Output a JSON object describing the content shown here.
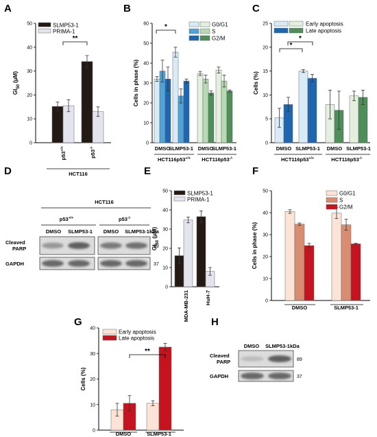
{
  "panels": {
    "A": {
      "letter": "A"
    },
    "B": {
      "letter": "B"
    },
    "C": {
      "letter": "C"
    },
    "D": {
      "letter": "D"
    },
    "E": {
      "letter": "E"
    },
    "F": {
      "letter": "F"
    },
    "G": {
      "letter": "G"
    },
    "H": {
      "letter": "H"
    }
  },
  "chart_data": [
    {
      "id": "A",
      "type": "bar",
      "ylabel": "GI50 (μM)",
      "ylim": [
        0,
        50
      ],
      "yticks": [
        0,
        10,
        20,
        30,
        40,
        50
      ],
      "categories": [
        "p53+/+",
        "p53-/-"
      ],
      "group_label": "HCT116",
      "series": [
        {
          "name": "SLMP53-1",
          "color": "#231a16",
          "values": [
            15.2,
            34.0
          ],
          "errors": [
            1.8,
            2.5
          ]
        },
        {
          "name": "PRIMA-1",
          "color": "#e4e4ee",
          "values": [
            15.5,
            13.0
          ],
          "errors": [
            2.5,
            2.0
          ]
        }
      ],
      "significance": [
        {
          "label": "**"
        }
      ]
    },
    {
      "id": "B",
      "type": "bar",
      "ylabel": "Cells in phase (%)",
      "ylim": [
        0,
        60
      ],
      "yticks": [
        0,
        10,
        20,
        30,
        40,
        50,
        60
      ],
      "categories": [
        "DMSO",
        "SLMP53-1",
        "DMSO",
        "SLMP53-1"
      ],
      "groups": [
        "HCT116p53+/+",
        "HCT116p53-/-"
      ],
      "series": [
        {
          "name": "G0/G1",
          "values": [
            32.0,
            45.5,
            34.8,
            36.5
          ],
          "errors": [
            1.2,
            2.5,
            1.0,
            1.5
          ]
        },
        {
          "name": "S",
          "values": [
            36.0,
            23.5,
            32.0,
            31.0
          ],
          "errors": [
            5.5,
            3.5,
            2.0,
            3.0
          ]
        },
        {
          "name": "G2/M",
          "values": [
            32.0,
            31.0,
            25.0,
            26.0
          ],
          "errors": [
            6.0,
            1.0,
            1.0,
            0.5
          ]
        }
      ],
      "colors": {
        "G0/G1": [
          "#d8ebf6",
          "#e3f0e0"
        ],
        "S": [
          "#4ea3d9",
          "#b8d9b2"
        ],
        "G2/M": [
          "#1f66b0",
          "#4f8e5a"
        ]
      },
      "significance": [
        {
          "label": "*"
        }
      ]
    },
    {
      "id": "C",
      "type": "bar",
      "ylabel": "Cells (%)",
      "ylim": [
        0,
        25
      ],
      "yticks": [
        0,
        5,
        10,
        15,
        20,
        25
      ],
      "categories": [
        "DMSO",
        "SLMP53-1",
        "DMSO",
        "SLMP53-1"
      ],
      "groups": [
        "HCT116p53+/+",
        "HCT116p53-/-"
      ],
      "series": [
        {
          "name": "Early apoptosis",
          "values": [
            5.2,
            15.0,
            8.0,
            9.8
          ],
          "errors": [
            2.0,
            0.3,
            3.0,
            1.0
          ]
        },
        {
          "name": "Late apoptosis",
          "values": [
            8.0,
            13.5,
            6.8,
            9.5
          ],
          "errors": [
            1.5,
            0.8,
            4.0,
            1.5
          ]
        }
      ],
      "colors": {
        "Early apoptosis": [
          "#d8ebf6",
          "#e3f0e0"
        ],
        "Late apoptosis": [
          "#1f66b0",
          "#4f8e5a"
        ]
      },
      "significance": [
        {
          "label": "*"
        },
        {
          "label": "*"
        }
      ]
    },
    {
      "id": "E",
      "type": "bar",
      "ylabel": "GI50 (μM)",
      "ylim": [
        0,
        50
      ],
      "yticks": [
        0,
        10,
        20,
        30,
        40,
        50
      ],
      "categories": [
        "MDA-MB-231",
        "HuH-7"
      ],
      "series": [
        {
          "name": "SLMP53-1",
          "color": "#231a16",
          "values": [
            16.2,
            36.5
          ],
          "errors": [
            4.0,
            3.0
          ]
        },
        {
          "name": "PRIMA-1",
          "color": "#e4e4ee",
          "values": [
            34.8,
            8.0
          ],
          "errors": [
            1.5,
            2.0
          ]
        }
      ]
    },
    {
      "id": "F",
      "type": "bar",
      "ylabel": "Cells in phase (%)",
      "ylim": [
        0,
        50
      ],
      "yticks": [
        0,
        10,
        20,
        30,
        40,
        50
      ],
      "categories": [
        "DMSO",
        "SLMP53-1"
      ],
      "series": [
        {
          "name": "G0/G1",
          "color": "#fbe3d6",
          "values": [
            40.5,
            39.8
          ],
          "errors": [
            0.8,
            2.5
          ]
        },
        {
          "name": "S",
          "color": "#d88c70",
          "values": [
            34.8,
            34.5
          ],
          "errors": [
            0.5,
            2.5
          ]
        },
        {
          "name": "G2/M",
          "color": "#c41420",
          "values": [
            25.0,
            25.8
          ],
          "errors": [
            1.0,
            0.3
          ]
        }
      ]
    },
    {
      "id": "G",
      "type": "bar",
      "ylabel": "Cells (%)",
      "ylim": [
        0,
        40
      ],
      "yticks": [
        0,
        10,
        20,
        30,
        40
      ],
      "categories": [
        "DMSO",
        "SLMP53-1"
      ],
      "series": [
        {
          "name": "Early apoptosis",
          "color": "#fbe3d6",
          "values": [
            8.0,
            10.5
          ],
          "errors": [
            2.5,
            1.0
          ]
        },
        {
          "name": "Late apoptosis",
          "color": "#c41420",
          "values": [
            10.5,
            32.5
          ],
          "errors": [
            3.0,
            1.5
          ]
        }
      ],
      "significance": [
        {
          "label": "**"
        }
      ]
    }
  ],
  "blots": {
    "D": {
      "title": "HCT116",
      "genotypes": [
        "p53+/+",
        "p53-/-"
      ],
      "lanes": [
        "DMSO",
        "SLMP53-1",
        "DMSO",
        "SLMP53-1"
      ],
      "kda": "kDa",
      "rows": [
        {
          "label": "Cleaved PARP",
          "kda": "89",
          "intensity": [
            0.55,
            0.85,
            0.7,
            0.75
          ]
        },
        {
          "label": "GAPDH",
          "kda": "37",
          "intensity": [
            0.8,
            0.8,
            0.8,
            0.8
          ]
        }
      ]
    },
    "H": {
      "lanes": [
        "DMSO",
        "SLMP53-1"
      ],
      "kda": "kDa",
      "rows": [
        {
          "label": "Cleaved PARP",
          "kda": "89",
          "intensity": [
            0.35,
            0.85
          ]
        },
        {
          "label": "GAPDH",
          "kda": "37",
          "intensity": [
            0.8,
            0.8
          ]
        }
      ]
    }
  }
}
